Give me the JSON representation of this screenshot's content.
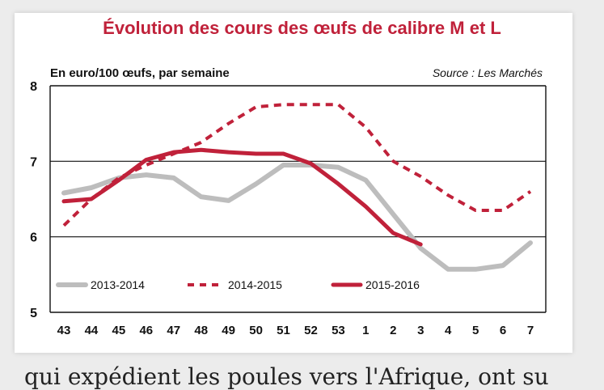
{
  "title": "Évolution des cours des œufs de calibre M et L",
  "subtitle": "En euro/100 œufs, par semaine",
  "source": "Source : Les Marchés",
  "bottom_text": "qui expédient les poules vers l'Afrique, ont su",
  "chart_data": {
    "type": "line",
    "categories": [
      "43",
      "44",
      "45",
      "46",
      "47",
      "48",
      "49",
      "50",
      "51",
      "52",
      "53",
      "1",
      "2",
      "3",
      "4",
      "5",
      "6",
      "7"
    ],
    "ylim": [
      5,
      8
    ],
    "yticks": [
      "5",
      "6",
      "7",
      "8"
    ],
    "grid": true,
    "legend_position": "bottom-left",
    "series": [
      {
        "name": "2013-2014",
        "color": "#bdbdbd",
        "style": "solid",
        "values": [
          6.58,
          6.65,
          6.78,
          6.82,
          6.78,
          6.53,
          6.48,
          6.7,
          6.95,
          6.95,
          6.92,
          6.75,
          6.3,
          5.85,
          5.57,
          5.57,
          5.62,
          5.92
        ]
      },
      {
        "name": "2014-2015",
        "color": "#c0213a",
        "style": "dotted",
        "values": [
          6.15,
          6.5,
          6.78,
          6.95,
          7.1,
          7.25,
          7.5,
          7.72,
          7.75,
          7.75,
          7.75,
          7.45,
          7.0,
          6.8,
          6.55,
          6.35,
          6.35,
          6.6
        ]
      },
      {
        "name": "2015-2016",
        "color": "#c0213a",
        "style": "solid",
        "values": [
          6.47,
          6.5,
          6.75,
          7.02,
          7.12,
          7.15,
          7.12,
          7.1,
          7.1,
          6.97,
          6.7,
          6.4,
          6.05,
          5.9,
          null,
          null,
          null,
          null
        ]
      }
    ]
  }
}
